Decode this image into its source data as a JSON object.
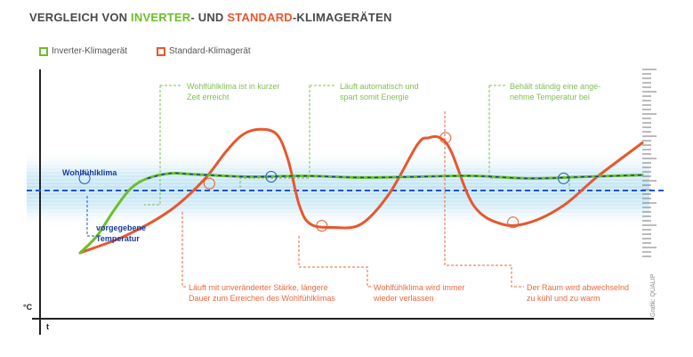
{
  "title": {
    "part1": "VERGLEICH VON ",
    "part2": "INVERTER",
    "part3": "- UND ",
    "part4": "STANDARD",
    "part5": "-KLIMAGERÄTEN"
  },
  "legend": {
    "inverter": "Inverter-Klimagerät",
    "standard": "Standard-Klimagerät"
  },
  "colors": {
    "inverter": "#6cbf2a",
    "standard": "#e8572e",
    "comfort_line": "#2255c8",
    "comfort_band": "#cfeaf7",
    "annotation_green": "#7fbf55",
    "annotation_red": "#e8693f"
  },
  "annotations": {
    "green_1": "Wohlfühlklima ist in kurzer\nZeit erreicht",
    "green_2": "Läuft automatisch und\nspart somit Energie",
    "green_3": "Behält ständig eine ange-\nnehme Temperatur bei",
    "red_1": "Läuft mit unveränderter Stärke, längere\nDauer zum Erreichen des Wohlfühlklimas",
    "red_2": "Wohlfühlklima wird immer\nwieder verlassen",
    "red_3": "Der Raum wird abwechselnd\nzu kühl und zu warm",
    "comfort_label": "Wohlfühlklima",
    "target_label": "vorgegebene\nTemperatur"
  },
  "axes": {
    "y_label": "°C",
    "x_label": "t"
  },
  "credit": "Grafik: QUALIP",
  "chart_data": {
    "type": "line",
    "title": "VERGLEICH VON INVERTER- UND STANDARD-KLIMAGERÄTEN",
    "xlabel": "t",
    "ylabel": "°C",
    "xlim": [
      0,
      100
    ],
    "ylim": [
      0,
      100
    ],
    "comfort_level": 55,
    "grid": false,
    "legend_position": "top-left",
    "series": [
      {
        "name": "Inverter-Klimagerät",
        "x": [
          0,
          3,
          6,
          9,
          12,
          16,
          20,
          30,
          40,
          50,
          60,
          70,
          80,
          90,
          100
        ],
        "y": [
          10,
          20,
          35,
          48,
          54,
          57,
          56.5,
          55,
          55.5,
          54.5,
          55,
          55.5,
          54,
          55,
          56
        ]
      },
      {
        "name": "Standard-Klimagerät",
        "x": [
          0,
          8,
          16,
          22,
          26,
          29,
          32,
          35,
          37,
          39,
          41,
          45,
          50,
          55,
          60,
          62,
          64,
          66,
          70,
          75,
          80,
          86,
          92,
          100
        ],
        "y": [
          10,
          20,
          35,
          53,
          70,
          80,
          83,
          80,
          65,
          38,
          27,
          25,
          27,
          45,
          74,
          78,
          78,
          70,
          38,
          27,
          28,
          38,
          55,
          75
        ]
      }
    ],
    "markers": [
      {
        "series": "Inverter-Klimagerät",
        "x": 0.8,
        "y": 54
      },
      {
        "series": "Inverter-Klimagerät",
        "x": 34,
        "y": 55
      },
      {
        "series": "Inverter-Klimagerät",
        "x": 86,
        "y": 54
      },
      {
        "series": "Standard-Klimagerät",
        "x": 23,
        "y": 51
      },
      {
        "series": "Standard-Klimagerät",
        "x": 43,
        "y": 26
      },
      {
        "series": "Standard-Klimagerät",
        "x": 65,
        "y": 78
      },
      {
        "series": "Standard-Klimagerät",
        "x": 77,
        "y": 28
      }
    ]
  }
}
